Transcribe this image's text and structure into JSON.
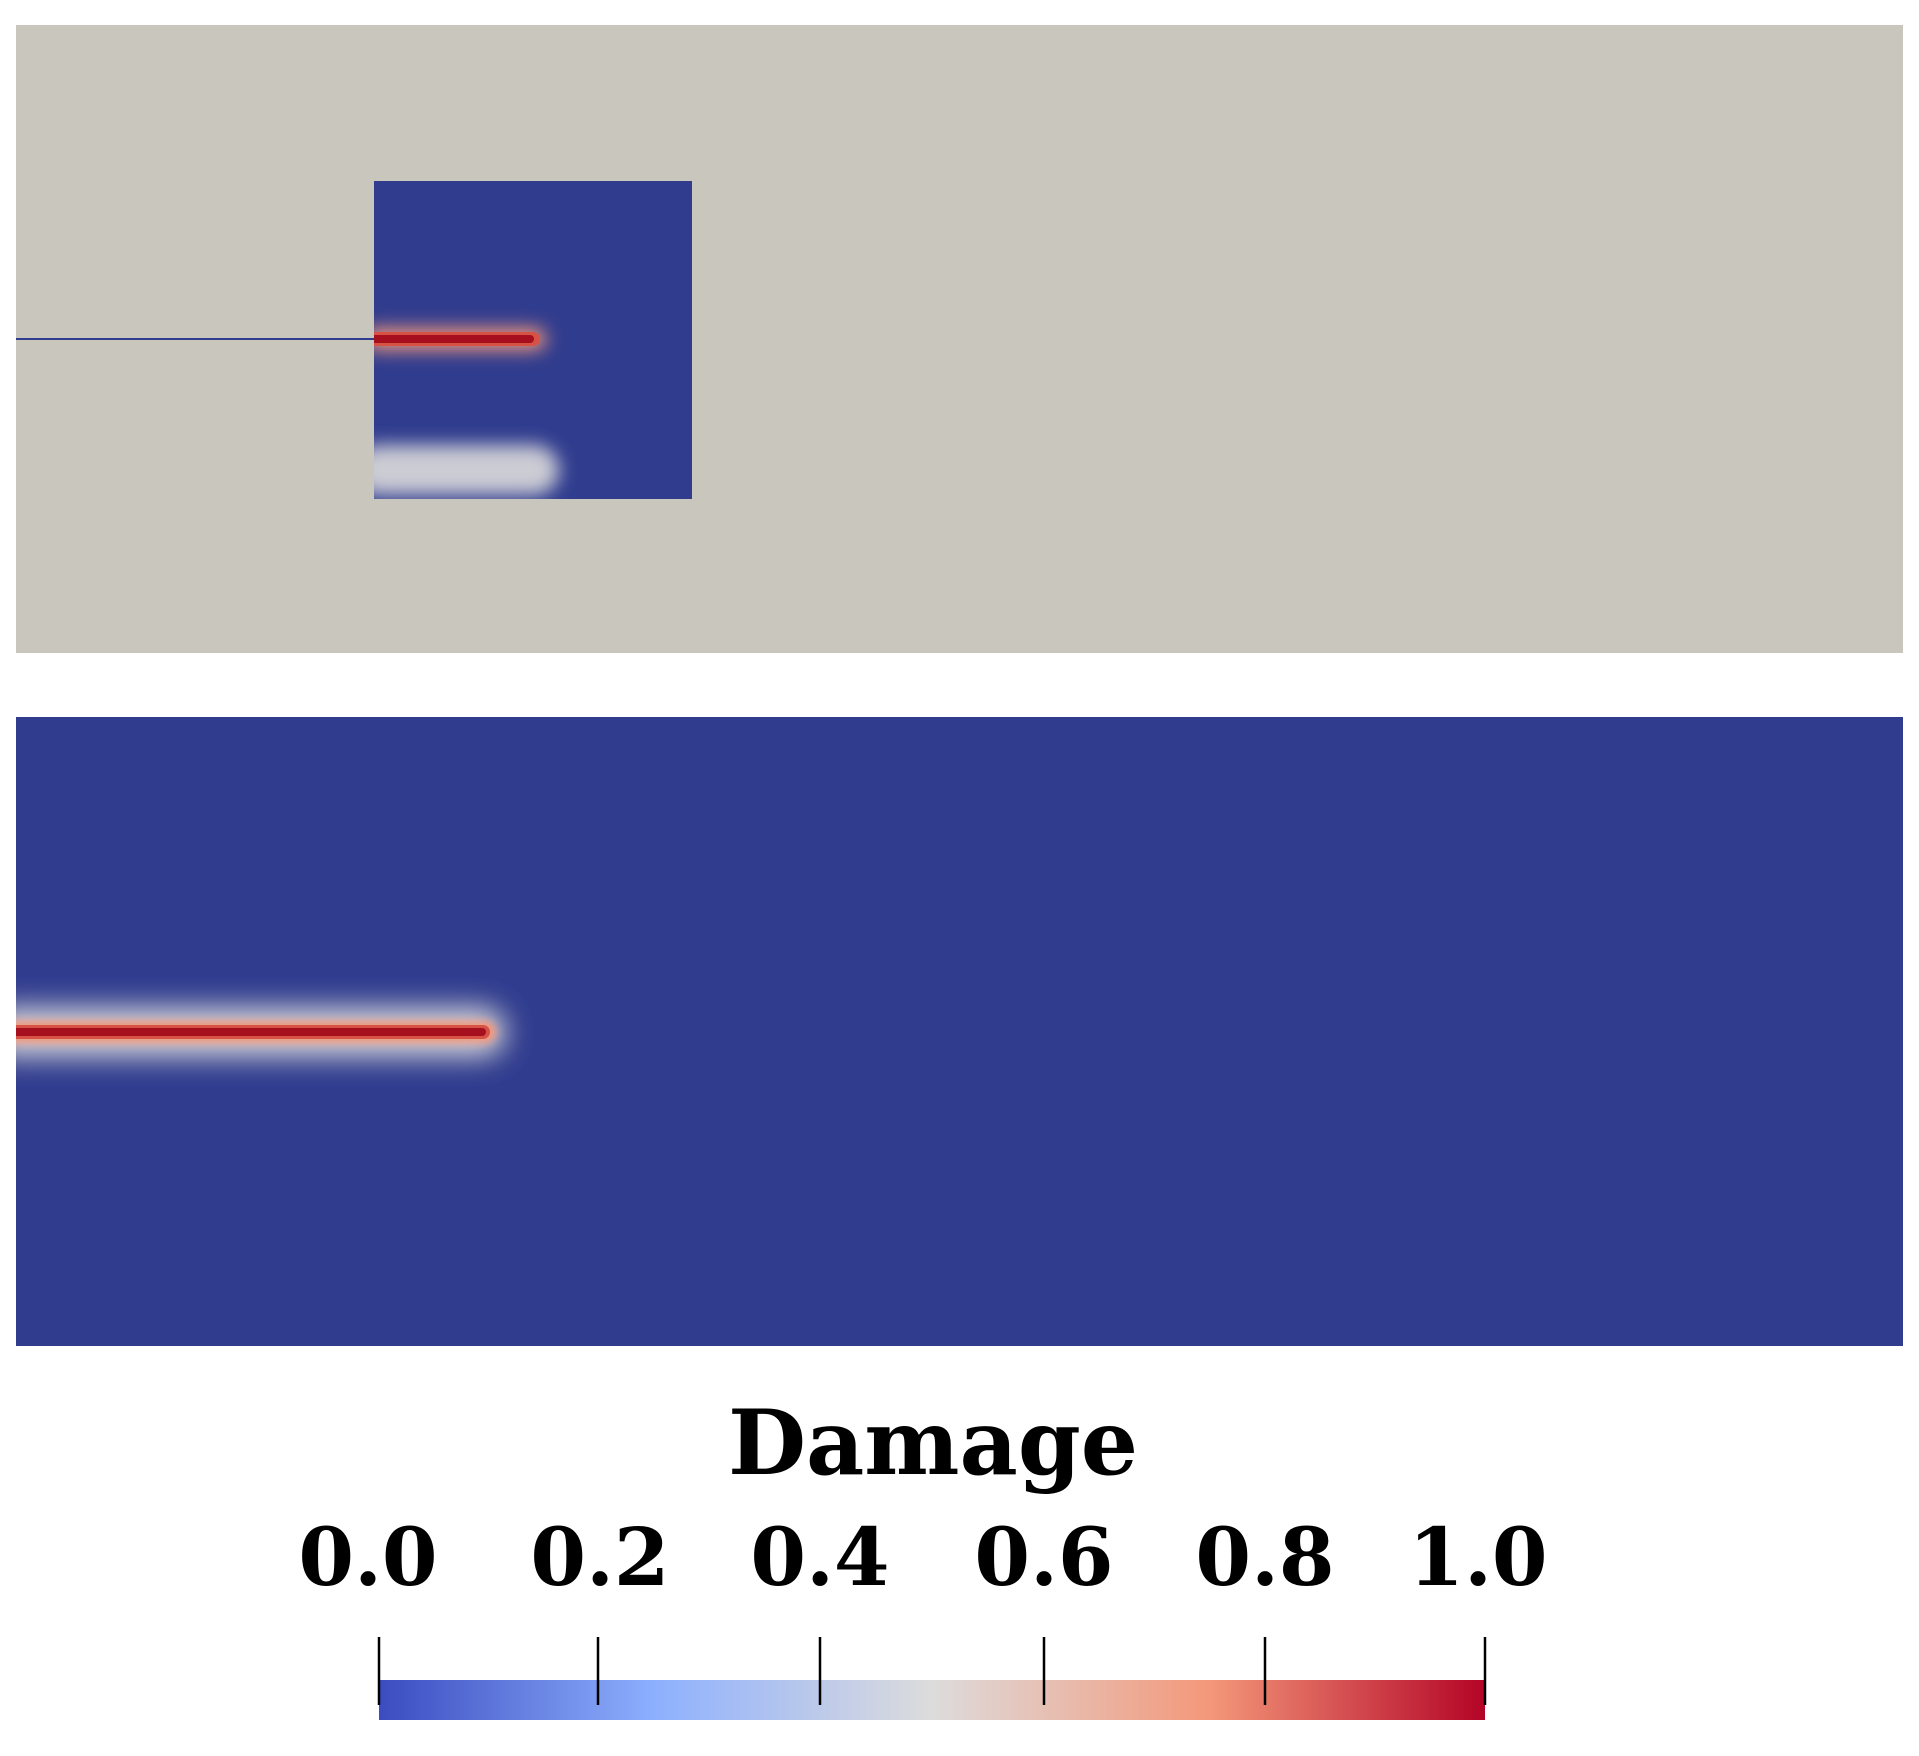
{
  "legend": {
    "title": "Damage",
    "ticks": [
      "0.0",
      "0.2",
      "0.4",
      "0.6",
      "0.8",
      "1.0"
    ],
    "range": [
      0.0,
      1.0
    ],
    "colormap": [
      "#3b4cc0",
      "#8db0fe",
      "#dddcdc",
      "#f4987a",
      "#b40426"
    ]
  },
  "colors": {
    "mesh_background": "#c8c6bd",
    "undamaged": "#303c8e",
    "crack_core": "#a50f1e"
  }
}
